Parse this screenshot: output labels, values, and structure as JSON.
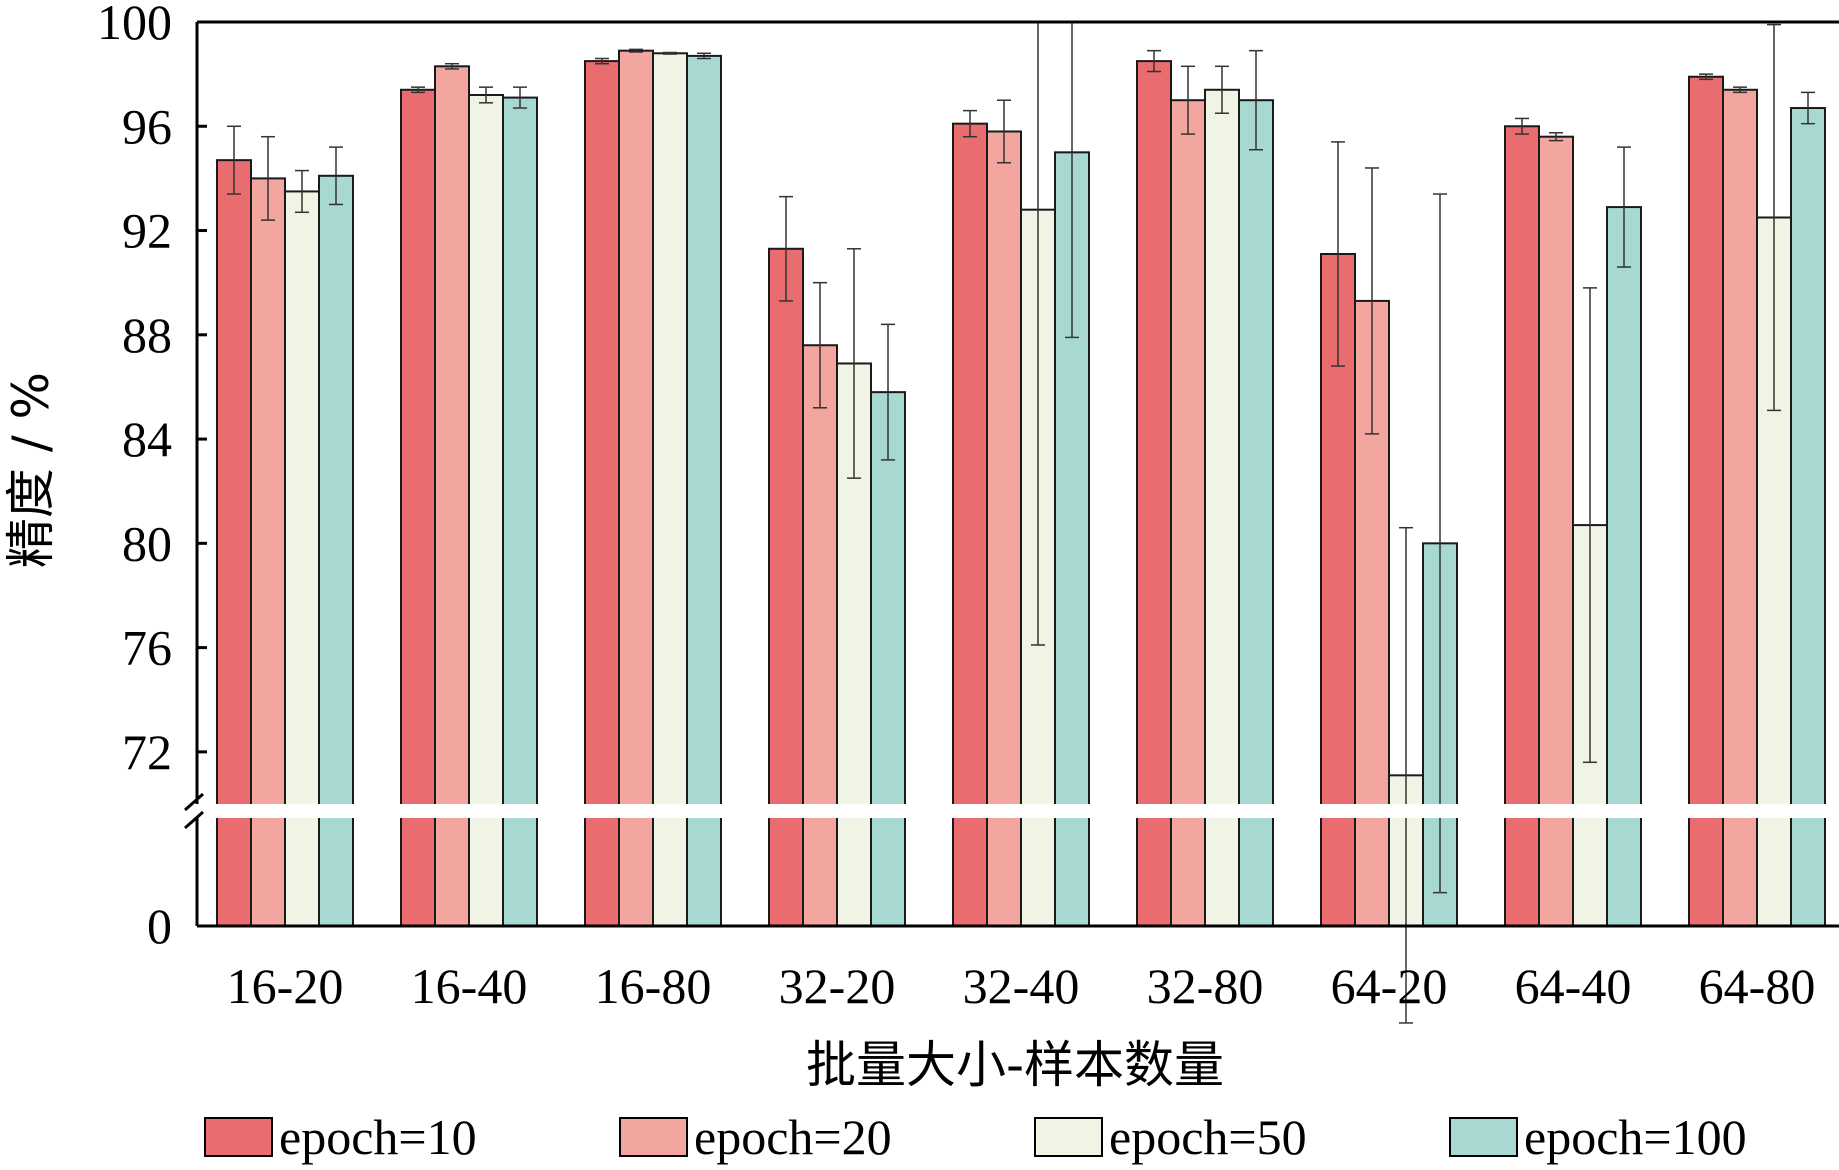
{
  "chart_data": {
    "type": "bar",
    "title": "",
    "xlabel": "批量大小-样本数量",
    "ylabel": "精度 / %",
    "categories": [
      "16-20",
      "16-40",
      "16-80",
      "32-20",
      "32-40",
      "32-80",
      "64-20",
      "64-40",
      "64-80"
    ],
    "y_ticks_upper": [
      72,
      76,
      80,
      84,
      88,
      92,
      96,
      100
    ],
    "y_ticks_lower": [
      0
    ],
    "ylim_upper": [
      70,
      100
    ],
    "axis_break": true,
    "grid": false,
    "legend_position": "bottom",
    "series": [
      {
        "name": "epoch=10",
        "color": "#e96c6e",
        "values": [
          94.7,
          97.4,
          98.5,
          91.3,
          96.1,
          98.5,
          91.1,
          96.0,
          97.9
        ],
        "errors": [
          1.3,
          0.1,
          0.1,
          2.0,
          0.5,
          0.4,
          4.3,
          0.3,
          0.1
        ]
      },
      {
        "name": "epoch=20",
        "color": "#f3a5a0",
        "values": [
          94.0,
          98.3,
          98.9,
          87.6,
          95.8,
          97.0,
          89.3,
          95.6,
          97.4
        ],
        "errors": [
          1.6,
          0.1,
          0.05,
          2.4,
          1.2,
          1.3,
          5.1,
          0.15,
          0.1
        ]
      },
      {
        "name": "epoch=50",
        "color": "#eff4e5",
        "values": [
          93.5,
          97.2,
          98.8,
          86.9,
          92.8,
          97.4,
          71.1,
          80.7,
          92.5
        ],
        "errors": [
          0.8,
          0.3,
          0.03,
          4.4,
          16.7,
          0.9,
          9.5,
          9.1,
          7.4
        ]
      },
      {
        "name": "epoch=100",
        "color": "#a8d8d2",
        "values": [
          94.1,
          97.1,
          98.7,
          85.8,
          95.0,
          97.0,
          80.0,
          92.9,
          96.7
        ],
        "errors": [
          1.1,
          0.4,
          0.1,
          2.6,
          7.1,
          1.9,
          13.4,
          2.3,
          0.6
        ]
      }
    ]
  }
}
